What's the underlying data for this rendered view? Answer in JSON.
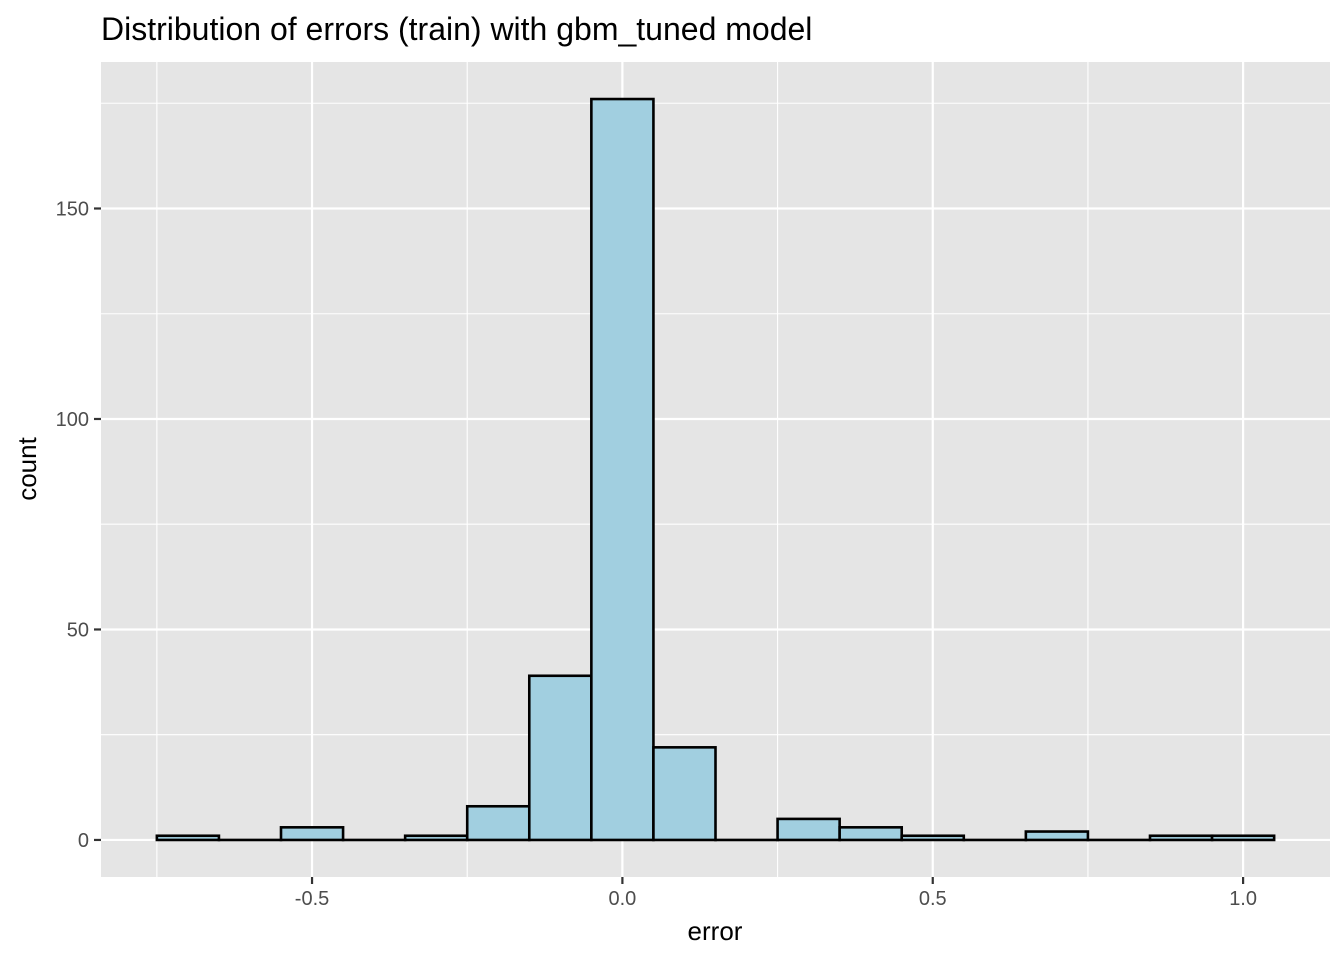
{
  "chart_data": {
    "type": "bar",
    "subtype": "histogram",
    "title": "Distribution of errors (train) with gbm_tuned model",
    "xlabel": "error",
    "ylabel": "count",
    "bin_width": 0.1,
    "bins": [
      {
        "start": -0.75,
        "end": -0.65,
        "count": 1
      },
      {
        "start": -0.65,
        "end": -0.55,
        "count": 0
      },
      {
        "start": -0.55,
        "end": -0.45,
        "count": 3
      },
      {
        "start": -0.45,
        "end": -0.35,
        "count": 0
      },
      {
        "start": -0.35,
        "end": -0.25,
        "count": 1
      },
      {
        "start": -0.25,
        "end": -0.15,
        "count": 8
      },
      {
        "start": -0.15,
        "end": -0.05,
        "count": 39
      },
      {
        "start": -0.05,
        "end": 0.05,
        "count": 176
      },
      {
        "start": 0.05,
        "end": 0.15,
        "count": 22
      },
      {
        "start": 0.15,
        "end": 0.25,
        "count": 0
      },
      {
        "start": 0.25,
        "end": 0.35,
        "count": 5
      },
      {
        "start": 0.35,
        "end": 0.45,
        "count": 3
      },
      {
        "start": 0.45,
        "end": 0.55,
        "count": 1
      },
      {
        "start": 0.55,
        "end": 0.65,
        "count": 0
      },
      {
        "start": 0.65,
        "end": 0.75,
        "count": 2
      },
      {
        "start": 0.75,
        "end": 0.85,
        "count": 0
      },
      {
        "start": 0.85,
        "end": 0.95,
        "count": 1
      },
      {
        "start": 0.95,
        "end": 1.05,
        "count": 1
      }
    ],
    "xlim": [
      -0.84,
      1.14
    ],
    "ylim": [
      -8.8,
      184.8
    ],
    "x_ticks": [
      -0.5,
      0.0,
      0.5,
      1.0
    ],
    "x_tick_labels": [
      "-0.5",
      "0.0",
      "0.5",
      "1.0"
    ],
    "y_ticks": [
      0,
      50,
      100,
      150
    ],
    "y_tick_labels": [
      "0",
      "50",
      "100",
      "150"
    ],
    "grid": true,
    "legend": "none",
    "colors": {
      "bar_fill": "#a1cfe0",
      "bar_outline": "#000000",
      "panel_background": "#e5e5e5",
      "grid_line": "#ffffff",
      "tick_text": "#4d4d4d"
    }
  }
}
